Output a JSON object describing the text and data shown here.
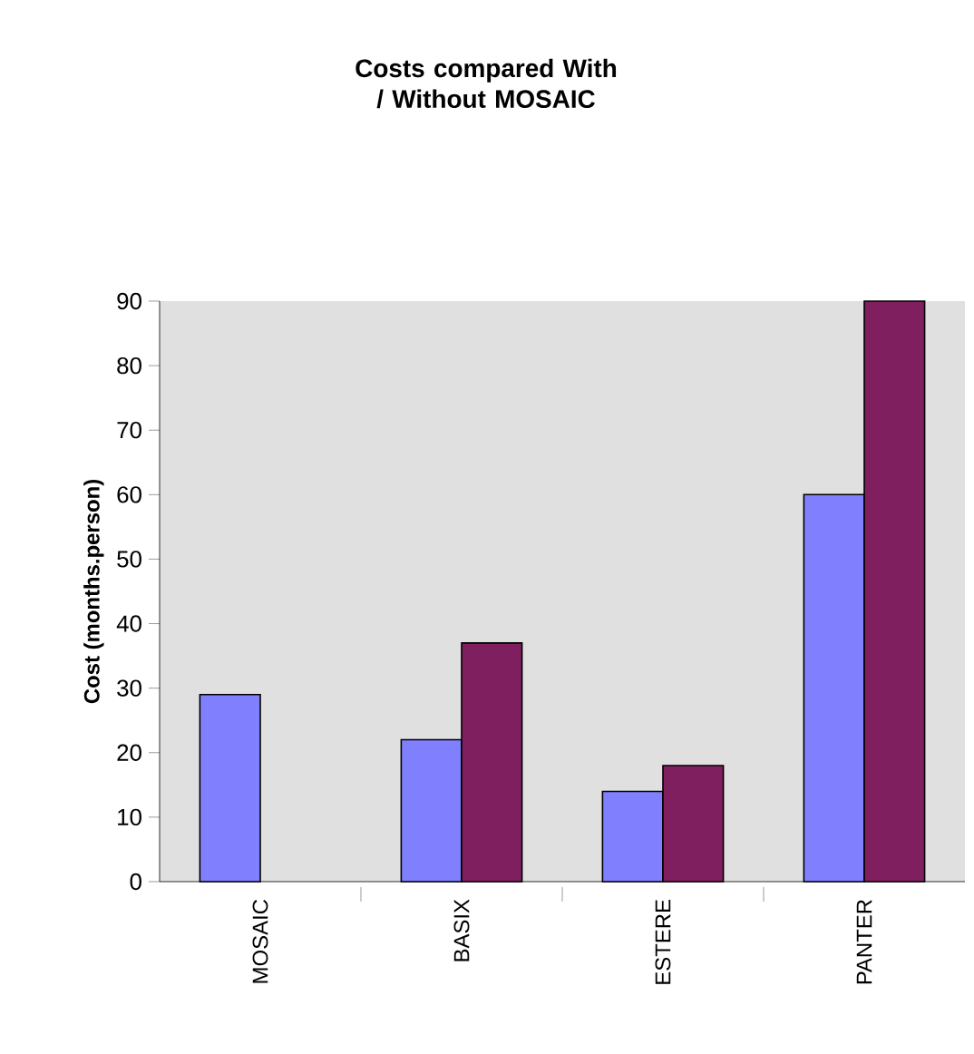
{
  "chart_data": {
    "type": "bar",
    "title": "Costs compared With / Without MOSAIC",
    "ylabel": "Cost (months.person)",
    "categories": [
      "MOSAIC",
      "BASIX",
      "ESTERE",
      "PANTER"
    ],
    "series": [
      {
        "color": "#8080ff",
        "values": [
          29,
          22,
          14,
          60
        ]
      },
      {
        "color": "#7f1f5f",
        "values": [
          null,
          37,
          18,
          90
        ]
      }
    ],
    "ylim": [
      0,
      90
    ],
    "yticks": [
      0,
      10,
      20,
      30,
      40,
      50,
      60,
      70,
      80,
      90
    ],
    "grid": false
  }
}
